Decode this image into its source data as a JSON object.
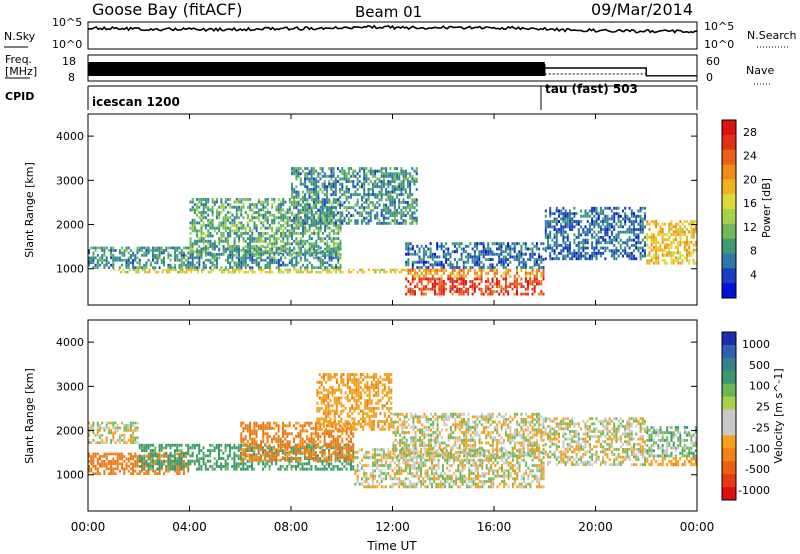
{
  "header": {
    "station": "Goose Bay (fitACF)",
    "beam": "Beam 01",
    "date": "09/Mar/2014"
  },
  "noise_panel": {
    "left_label": "N.Sky",
    "right_label": "N.Search",
    "left_ticks": [
      "10^5",
      "10^0"
    ],
    "right_ticks": [
      "10^5",
      "10^0"
    ]
  },
  "freq_panel": {
    "left_label_top": "Freq.",
    "left_label_bottom": "[MHz]",
    "left_ticks": [
      "18",
      "8"
    ],
    "right_label": "Nave",
    "right_ticks": [
      "60",
      "0"
    ],
    "nave_steps": [
      {
        "from": "18:00",
        "to": "22:00",
        "value": 30
      },
      {
        "from": "22:00",
        "to": "24:00",
        "value": 12
      }
    ]
  },
  "cpid": {
    "label": "CPID",
    "programs": [
      {
        "name": "icescan 1200",
        "start": "00:00"
      },
      {
        "name": "tau (fast) 503",
        "start": "18:00"
      }
    ]
  },
  "xaxis": {
    "label": "Time UT",
    "ticks": [
      "00:00",
      "04:00",
      "08:00",
      "12:00",
      "16:00",
      "20:00",
      "00:00"
    ]
  },
  "power_panel": {
    "ylabel": "Slant Range [km]",
    "yticks": [
      "1000",
      "2000",
      "3000",
      "4000"
    ],
    "colorbar_label": "Power [dB]",
    "colorbar_ticks": [
      "4",
      "8",
      "12",
      "16",
      "20",
      "24",
      "28"
    ],
    "colorbar_colors": [
      "#0010d8",
      "#1a3fc0",
      "#2f78a6",
      "#3d9a72",
      "#72b85b",
      "#a8d14a",
      "#e0d83a",
      "#f2b21c",
      "#f08a1a",
      "#ec5f1a",
      "#e33018",
      "#dd1010"
    ]
  },
  "velocity_panel": {
    "ylabel": "Slant Range [km]",
    "yticks": [
      "1000",
      "2000",
      "3000",
      "4000"
    ],
    "colorbar_label": "Velocity [m s^-1]",
    "colorbar_ticks": [
      "1000",
      "500",
      "100",
      "25",
      "-25",
      "-100",
      "-500",
      "-1000"
    ],
    "colorbar_colors": [
      "#1c2bb4",
      "#2f5fb0",
      "#37808f",
      "#3a9a6c",
      "#6cb657",
      "#a6d24a",
      "#c9c9c9",
      "#c9c9c9",
      "#f2a11c",
      "#f0821a",
      "#ec5d16",
      "#e43a14",
      "#dc1010"
    ]
  },
  "chart_data": [
    {
      "type": "heatmap",
      "title": "Power",
      "xlabel": "Time UT",
      "ylabel": "Slant Range [km]",
      "xlim": [
        "00:00",
        "24:00"
      ],
      "ylim": [
        180,
        4500
      ],
      "colorbar": {
        "label": "Power [dB]",
        "range": [
          0,
          30
        ]
      },
      "regions": [
        {
          "t0": 0.0,
          "t1": 10.0,
          "r0": 1000,
          "r1": 1500,
          "value": 8
        },
        {
          "t0": 4.0,
          "t1": 10.0,
          "r0": 1300,
          "r1": 2600,
          "value": 10
        },
        {
          "t0": 8.0,
          "t1": 13.0,
          "r0": 2000,
          "r1": 3300,
          "value": 8
        },
        {
          "t0": 1.0,
          "t1": 12.5,
          "r0": 900,
          "r1": 1000,
          "value": 16
        },
        {
          "t0": 12.5,
          "t1": 18.0,
          "r0": 1000,
          "r1": 1600,
          "value": 6
        },
        {
          "t0": 12.5,
          "t1": 18.0,
          "r0": 800,
          "r1": 1000,
          "value": 20
        },
        {
          "t0": 12.5,
          "t1": 18.0,
          "r0": 400,
          "r1": 800,
          "value": 26
        },
        {
          "t0": 18.0,
          "t1": 22.0,
          "r0": 1200,
          "r1": 2400,
          "value": 6
        },
        {
          "t0": 22.0,
          "t1": 24.0,
          "r0": 1100,
          "r1": 2100,
          "value": 18
        }
      ]
    },
    {
      "type": "heatmap",
      "title": "Velocity",
      "xlabel": "Time UT",
      "ylabel": "Slant Range [km]",
      "xlim": [
        "00:00",
        "24:00"
      ],
      "ylim": [
        180,
        4500
      ],
      "colorbar": {
        "label": "Velocity [m s^-1]",
        "range": [
          -1000,
          1000
        ]
      },
      "regions": [
        {
          "t0": 0.0,
          "t1": 2.0,
          "r0": 1700,
          "r1": 2200,
          "value": 0
        },
        {
          "t0": 0.0,
          "t1": 4.0,
          "r0": 1000,
          "r1": 1500,
          "value": -300
        },
        {
          "t0": 2.0,
          "t1": 10.5,
          "r0": 1100,
          "r1": 1700,
          "value": 150
        },
        {
          "t0": 6.0,
          "t1": 10.5,
          "r0": 1300,
          "r1": 2200,
          "value": -250
        },
        {
          "t0": 9.0,
          "t1": 12.0,
          "r0": 2000,
          "r1": 3300,
          "value": -150
        },
        {
          "t0": 10.5,
          "t1": 18.0,
          "r0": 700,
          "r1": 1600,
          "value": 0
        },
        {
          "t0": 12.0,
          "t1": 18.0,
          "r0": 1400,
          "r1": 2400,
          "value": 0
        },
        {
          "t0": 18.0,
          "t1": 22.0,
          "r0": 1200,
          "r1": 2300,
          "value": 0
        },
        {
          "t0": 22.0,
          "t1": 24.0,
          "r0": 1400,
          "r1": 2100,
          "value": 60
        },
        {
          "t0": 22.0,
          "t1": 24.0,
          "r0": 1200,
          "r1": 1400,
          "value": -150
        }
      ]
    }
  ]
}
